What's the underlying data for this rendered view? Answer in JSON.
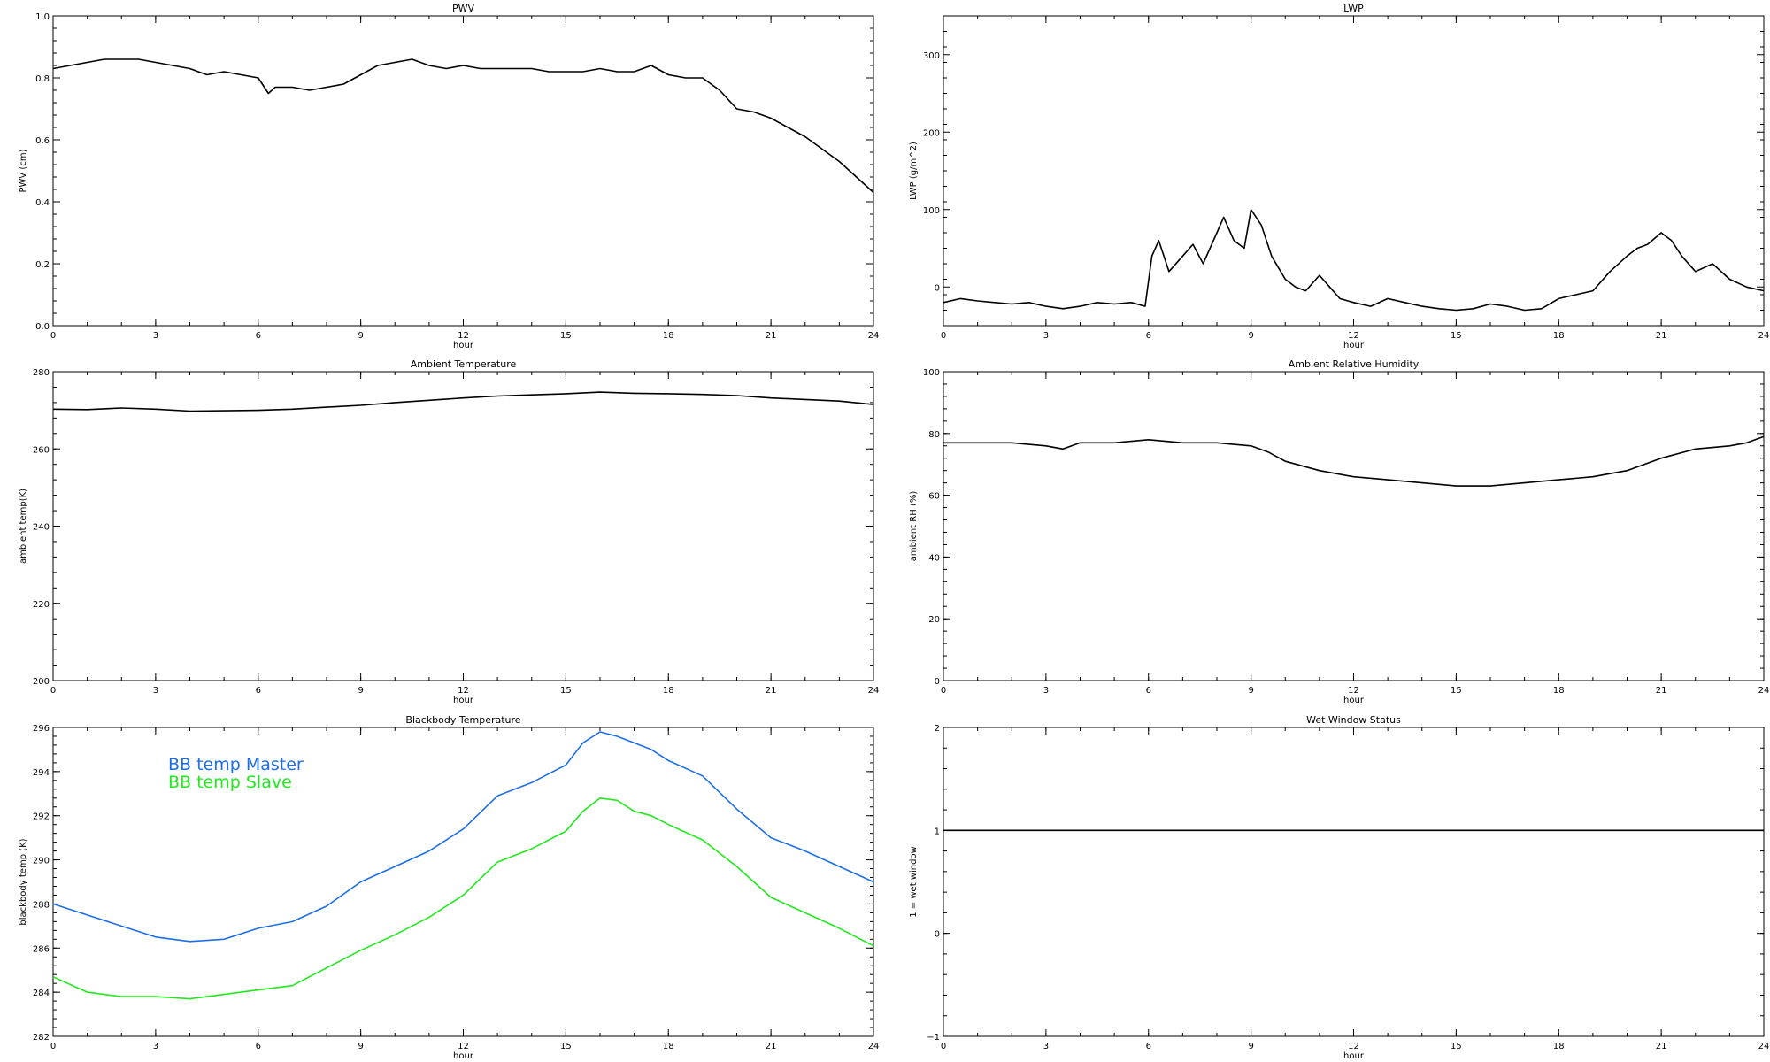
{
  "chart_data": [
    {
      "type": "line",
      "title": "PWV",
      "xlabel": "hour",
      "ylabel": "PWV (cm)",
      "xlim": [
        0,
        24
      ],
      "ylim": [
        0,
        1.0
      ],
      "xticks": [
        "0",
        "3",
        "6",
        "9",
        "12",
        "15",
        "18",
        "21",
        "24"
      ],
      "yticks": [
        "0.0",
        "0.2",
        "0.4",
        "0.6",
        "0.8",
        "1.0"
      ],
      "series": [
        {
          "color": "#000000",
          "x": [
            0,
            0.5,
            1,
            1.5,
            2,
            2.5,
            3,
            3.5,
            4,
            4.5,
            5,
            5.5,
            6,
            6.3,
            6.5,
            7,
            7.5,
            8,
            8.5,
            9,
            9.5,
            10,
            10.5,
            11,
            11.5,
            12,
            12.5,
            13,
            13.5,
            14,
            14.5,
            15,
            15.5,
            16,
            16.5,
            17,
            17.5,
            18,
            18.5,
            19,
            19.5,
            20,
            20.5,
            21,
            21.5,
            22,
            22.5,
            23,
            23.5,
            24
          ],
          "y": [
            0.83,
            0.84,
            0.85,
            0.86,
            0.86,
            0.86,
            0.85,
            0.84,
            0.83,
            0.81,
            0.82,
            0.81,
            0.8,
            0.75,
            0.77,
            0.77,
            0.76,
            0.77,
            0.78,
            0.81,
            0.84,
            0.85,
            0.86,
            0.84,
            0.83,
            0.84,
            0.83,
            0.83,
            0.83,
            0.83,
            0.82,
            0.82,
            0.82,
            0.83,
            0.82,
            0.82,
            0.84,
            0.81,
            0.8,
            0.8,
            0.76,
            0.7,
            0.69,
            0.67,
            0.64,
            0.61,
            0.57,
            0.53,
            0.48,
            0.43
          ]
        }
      ]
    },
    {
      "type": "line",
      "title": "LWP",
      "xlabel": "hour",
      "ylabel": "LWP (g/m^2)",
      "xlim": [
        0,
        24
      ],
      "ylim": [
        -50,
        350
      ],
      "xticks": [
        "0",
        "3",
        "6",
        "9",
        "12",
        "15",
        "18",
        "21",
        "24"
      ],
      "yticks": [
        "0",
        "100",
        "200",
        "300"
      ],
      "series": [
        {
          "color": "#000000",
          "x": [
            0,
            0.5,
            1,
            1.5,
            2,
            2.5,
            3,
            3.5,
            4,
            4.5,
            5,
            5.5,
            5.9,
            6.1,
            6.3,
            6.6,
            7,
            7.3,
            7.6,
            8,
            8.2,
            8.5,
            8.8,
            9,
            9.3,
            9.6,
            10,
            10.3,
            10.6,
            11,
            11.3,
            11.6,
            12,
            12.5,
            13,
            13.5,
            14,
            14.5,
            15,
            15.5,
            16,
            16.5,
            17,
            17.5,
            18,
            18.5,
            19,
            19.5,
            20,
            20.3,
            20.6,
            21,
            21.3,
            21.6,
            22,
            22.5,
            23,
            23.5,
            24
          ],
          "y": [
            -20,
            -15,
            -18,
            -20,
            -22,
            -20,
            -25,
            -28,
            -25,
            -20,
            -22,
            -20,
            -25,
            40,
            60,
            20,
            40,
            55,
            30,
            70,
            90,
            60,
            50,
            100,
            80,
            40,
            10,
            0,
            -5,
            15,
            0,
            -15,
            -20,
            -25,
            -15,
            -20,
            -25,
            -28,
            -30,
            -28,
            -22,
            -25,
            -30,
            -28,
            -15,
            -10,
            -5,
            20,
            40,
            50,
            55,
            70,
            60,
            40,
            20,
            30,
            10,
            0,
            -5
          ]
        }
      ]
    },
    {
      "type": "line",
      "title": "Ambient Temperature",
      "xlabel": "hour",
      "ylabel": "ambient temp(K)",
      "xlim": [
        0,
        24
      ],
      "ylim": [
        200,
        280
      ],
      "xticks": [
        "0",
        "3",
        "6",
        "9",
        "12",
        "15",
        "18",
        "21",
        "24"
      ],
      "yticks": [
        "200",
        "220",
        "240",
        "260",
        "280"
      ],
      "series": [
        {
          "color": "#000000",
          "x": [
            0,
            1,
            2,
            3,
            4,
            5,
            6,
            7,
            8,
            9,
            10,
            11,
            12,
            13,
            14,
            15,
            16,
            17,
            18,
            19,
            20,
            21,
            22,
            23,
            24
          ],
          "y": [
            270.3,
            270.2,
            270.6,
            270.3,
            269.8,
            269.9,
            270.0,
            270.3,
            270.8,
            271.3,
            272.0,
            272.6,
            273.2,
            273.7,
            274.0,
            274.3,
            274.7,
            274.4,
            274.3,
            274.1,
            273.8,
            273.2,
            272.8,
            272.4,
            271.5
          ]
        }
      ]
    },
    {
      "type": "line",
      "title": "Ambient Relative Humidity",
      "xlabel": "hour",
      "ylabel": "ambient RH (%)",
      "xlim": [
        0,
        24
      ],
      "ylim": [
        0,
        100
      ],
      "xticks": [
        "0",
        "3",
        "6",
        "9",
        "12",
        "15",
        "18",
        "21",
        "24"
      ],
      "yticks": [
        "0",
        "20",
        "40",
        "60",
        "80",
        "100"
      ],
      "series": [
        {
          "color": "#000000",
          "x": [
            0,
            1,
            2,
            3,
            3.5,
            4,
            5,
            6,
            7,
            8,
            9,
            9.5,
            10,
            11,
            12,
            13,
            14,
            15,
            16,
            17,
            18,
            19,
            20,
            21,
            22,
            23,
            23.5,
            24
          ],
          "y": [
            77,
            77,
            77,
            76,
            75,
            77,
            77,
            78,
            77,
            77,
            76,
            74,
            71,
            68,
            66,
            65,
            64,
            63,
            63,
            64,
            65,
            66,
            68,
            72,
            75,
            76,
            77,
            79
          ]
        }
      ]
    },
    {
      "type": "line",
      "title": "Blackbody Temperature",
      "xlabel": "hour",
      "ylabel": "blackbody temp (K)",
      "xlim": [
        0,
        24
      ],
      "ylim": [
        282,
        296
      ],
      "xticks": [
        "0",
        "3",
        "6",
        "9",
        "12",
        "15",
        "18",
        "21",
        "24"
      ],
      "yticks": [
        "282",
        "284",
        "286",
        "288",
        "290",
        "292",
        "294",
        "296"
      ],
      "legend": "top-left",
      "series": [
        {
          "name": "BB temp Master",
          "color": "#1e6ee8",
          "x": [
            0,
            1,
            2,
            3,
            4,
            5,
            6,
            7,
            8,
            9,
            10,
            11,
            12,
            13,
            14,
            15,
            15.5,
            16,
            16.5,
            17,
            17.5,
            18,
            19,
            20,
            21,
            22,
            23,
            24
          ],
          "y": [
            288.0,
            287.5,
            287.0,
            286.5,
            286.3,
            286.4,
            286.9,
            287.2,
            287.9,
            289.0,
            289.7,
            290.4,
            291.4,
            292.9,
            293.5,
            294.3,
            295.3,
            295.8,
            295.6,
            295.3,
            295.0,
            294.5,
            293.8,
            292.3,
            291.0,
            290.4,
            289.7,
            289.0
          ]
        },
        {
          "name": "BB temp Slave",
          "color": "#22e81e",
          "x": [
            0,
            1,
            2,
            3,
            4,
            5,
            6,
            7,
            8,
            9,
            10,
            11,
            12,
            13,
            14,
            15,
            15.5,
            16,
            16.5,
            17,
            17.5,
            18,
            19,
            20,
            21,
            22,
            23,
            24
          ],
          "y": [
            284.7,
            284.0,
            283.8,
            283.8,
            283.7,
            283.9,
            284.1,
            284.3,
            285.1,
            285.9,
            286.6,
            287.4,
            288.4,
            289.9,
            290.5,
            291.3,
            292.2,
            292.8,
            292.7,
            292.2,
            292.0,
            291.6,
            290.9,
            289.7,
            288.3,
            287.6,
            286.9,
            286.1
          ]
        }
      ]
    },
    {
      "type": "line",
      "title": "Wet Window Status",
      "xlabel": "hour",
      "ylabel": "1 = wet window",
      "xlim": [
        0,
        24
      ],
      "ylim": [
        -1,
        2
      ],
      "xticks": [
        "0",
        "3",
        "6",
        "9",
        "12",
        "15",
        "18",
        "21",
        "24"
      ],
      "yticks": [
        "−1",
        "0",
        "1",
        "2"
      ],
      "series": [
        {
          "color": "#000000",
          "x": [
            0,
            24
          ],
          "y": [
            1,
            1
          ]
        }
      ]
    }
  ]
}
